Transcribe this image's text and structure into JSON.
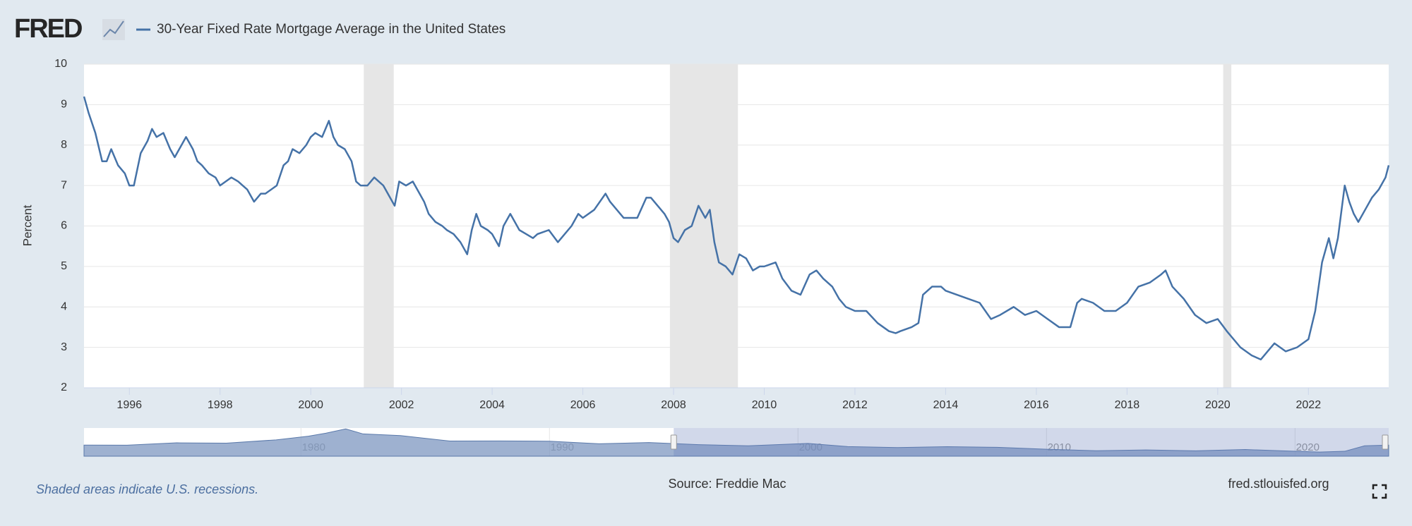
{
  "logo": "FRED",
  "chart_data": {
    "type": "line",
    "y_label": "Percent",
    "color": "#4572a7",
    "grid": true,
    "xlim": [
      1995,
      2023.77
    ],
    "xticks": [
      1996,
      1998,
      2000,
      2002,
      2004,
      2006,
      2008,
      2010,
      2012,
      2014,
      2016,
      2018,
      2020,
      2022
    ],
    "ylim": [
      2,
      10
    ],
    "yticks": [
      2,
      3,
      4,
      5,
      6,
      7,
      8,
      9,
      10
    ],
    "recessions": [
      [
        2001.17,
        2001.83
      ],
      [
        2007.92,
        2009.42
      ],
      [
        2020.12,
        2020.3
      ]
    ],
    "x": [
      1995.0,
      1995.1,
      1995.25,
      1995.4,
      1995.5,
      1995.6,
      1995.75,
      1995.9,
      1996.0,
      1996.1,
      1996.25,
      1996.4,
      1996.5,
      1996.6,
      1996.75,
      1996.9,
      1997.0,
      1997.1,
      1997.25,
      1997.4,
      1997.5,
      1997.6,
      1997.75,
      1997.9,
      1998.0,
      1998.25,
      1998.4,
      1998.5,
      1998.6,
      1998.75,
      1998.9,
      1999.0,
      1999.25,
      1999.4,
      1999.5,
      1999.6,
      1999.75,
      1999.9,
      2000.0,
      2000.1,
      2000.25,
      2000.4,
      2000.5,
      2000.6,
      2000.75,
      2000.9,
      2001.0,
      2001.1,
      2001.25,
      2001.4,
      2001.5,
      2001.6,
      2001.75,
      2001.85,
      2001.95,
      2002.1,
      2002.25,
      2002.4,
      2002.5,
      2002.6,
      2002.75,
      2002.9,
      2003.0,
      2003.15,
      2003.3,
      2003.45,
      2003.55,
      2003.65,
      2003.75,
      2003.9,
      2004.0,
      2004.15,
      2004.25,
      2004.4,
      2004.5,
      2004.6,
      2004.75,
      2004.9,
      2005.0,
      2005.25,
      2005.45,
      2005.6,
      2005.75,
      2005.9,
      2006.0,
      2006.25,
      2006.5,
      2006.6,
      2006.75,
      2006.9,
      2007.0,
      2007.2,
      2007.4,
      2007.5,
      2007.65,
      2007.8,
      2007.9,
      2008.0,
      2008.1,
      2008.25,
      2008.4,
      2008.55,
      2008.7,
      2008.8,
      2008.9,
      2009.0,
      2009.15,
      2009.3,
      2009.45,
      2009.6,
      2009.75,
      2009.9,
      2010.0,
      2010.25,
      2010.4,
      2010.6,
      2010.8,
      2011.0,
      2011.15,
      2011.3,
      2011.5,
      2011.65,
      2011.8,
      2012.0,
      2012.25,
      2012.5,
      2012.75,
      2012.9,
      2013.0,
      2013.25,
      2013.4,
      2013.5,
      2013.7,
      2013.9,
      2014.0,
      2014.25,
      2014.5,
      2014.75,
      2015.0,
      2015.2,
      2015.5,
      2015.75,
      2016.0,
      2016.25,
      2016.5,
      2016.75,
      2016.9,
      2017.0,
      2017.25,
      2017.5,
      2017.75,
      2018.0,
      2018.25,
      2018.5,
      2018.75,
      2018.85,
      2019.0,
      2019.25,
      2019.5,
      2019.75,
      2020.0,
      2020.2,
      2020.5,
      2020.75,
      2020.95,
      2021.1,
      2021.25,
      2021.5,
      2021.75,
      2022.0,
      2022.15,
      2022.3,
      2022.45,
      2022.55,
      2022.65,
      2022.8,
      2022.9,
      2023.0,
      2023.1,
      2023.25,
      2023.4,
      2023.55,
      2023.7,
      2023.77
    ],
    "series": [
      {
        "name": "30-Year Fixed Rate Mortgage Average in the United States",
        "color": "#4572a7",
        "values": [
          9.2,
          8.8,
          8.3,
          7.6,
          7.6,
          7.9,
          7.5,
          7.3,
          7.0,
          7.0,
          7.8,
          8.1,
          8.4,
          8.2,
          8.3,
          7.9,
          7.7,
          7.9,
          8.2,
          7.9,
          7.6,
          7.5,
          7.3,
          7.2,
          7.0,
          7.2,
          7.1,
          7.0,
          6.9,
          6.6,
          6.8,
          6.8,
          7.0,
          7.5,
          7.6,
          7.9,
          7.8,
          8.0,
          8.2,
          8.3,
          8.2,
          8.6,
          8.2,
          8.0,
          7.9,
          7.6,
          7.1,
          7.0,
          7.0,
          7.2,
          7.1,
          7.0,
          6.7,
          6.5,
          7.1,
          7.0,
          7.1,
          6.8,
          6.6,
          6.3,
          6.1,
          6.0,
          5.9,
          5.8,
          5.6,
          5.3,
          5.9,
          6.3,
          6.0,
          5.9,
          5.8,
          5.5,
          6.0,
          6.3,
          6.1,
          5.9,
          5.8,
          5.7,
          5.8,
          5.9,
          5.6,
          5.8,
          6.0,
          6.3,
          6.2,
          6.4,
          6.8,
          6.6,
          6.4,
          6.2,
          6.2,
          6.2,
          6.7,
          6.7,
          6.5,
          6.3,
          6.1,
          5.7,
          5.6,
          5.9,
          6.0,
          6.5,
          6.2,
          6.4,
          5.6,
          5.1,
          5.0,
          4.8,
          5.3,
          5.2,
          4.9,
          5.0,
          5.0,
          5.1,
          4.7,
          4.4,
          4.3,
          4.8,
          4.9,
          4.7,
          4.5,
          4.2,
          4.0,
          3.9,
          3.9,
          3.6,
          3.4,
          3.35,
          3.4,
          3.5,
          3.6,
          4.3,
          4.5,
          4.5,
          4.4,
          4.3,
          4.2,
          4.1,
          3.7,
          3.8,
          4.0,
          3.8,
          3.9,
          3.7,
          3.5,
          3.5,
          4.1,
          4.2,
          4.1,
          3.9,
          3.9,
          4.1,
          4.5,
          4.6,
          4.8,
          4.9,
          4.5,
          4.2,
          3.8,
          3.6,
          3.7,
          3.4,
          3.0,
          2.8,
          2.7,
          2.9,
          3.1,
          2.9,
          3.0,
          3.2,
          3.9,
          5.1,
          5.7,
          5.2,
          5.7,
          7.0,
          6.6,
          6.3,
          6.1,
          6.4,
          6.7,
          6.9,
          7.2,
          7.5
        ]
      }
    ],
    "navigator": {
      "xlim": [
        1971.27,
        2023.77
      ],
      "ylim": [
        0,
        19
      ],
      "xticks": [
        1980,
        1990,
        2000,
        2010,
        2020
      ],
      "x": [
        1971.27,
        1973,
        1975,
        1977,
        1979,
        1980.3,
        1981,
        1981.8,
        1982.5,
        1984,
        1986,
        1988,
        1990,
        1992,
        1994,
        1996,
        1998,
        2000.4,
        2002,
        2004,
        2006,
        2008,
        2010,
        2012,
        2014,
        2016,
        2018,
        2020,
        2021,
        2022,
        2022.8,
        2023.77
      ],
      "values": [
        7.5,
        7.4,
        9.0,
        8.8,
        11.0,
        13.5,
        15.5,
        18.4,
        15.0,
        13.9,
        10.2,
        10.3,
        10.1,
        8.4,
        9.2,
        7.8,
        7.0,
        8.6,
        6.5,
        5.8,
        6.4,
        6.0,
        4.7,
        3.7,
        4.2,
        3.6,
        4.5,
        3.3,
        2.8,
        3.3,
        7.0,
        7.5
      ]
    }
  },
  "footer": {
    "note": "Shaded areas indicate U.S. recessions.",
    "source": "Source: Freddie Mac",
    "site": "fred.stlouisfed.org"
  }
}
